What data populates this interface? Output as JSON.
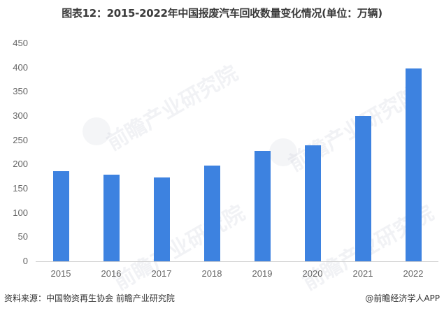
{
  "title": "图表12：2015-2022年中国报废汽车回收数量变化情况(单位：万辆)",
  "chart_data": {
    "type": "bar",
    "title": "图表12：2015-2022年中国报废汽车回收数量变化情况(单位：万辆)",
    "xlabel": "",
    "ylabel": "",
    "unit": "万辆",
    "categories": [
      "2015",
      "2016",
      "2017",
      "2018",
      "2019",
      "2020",
      "2021",
      "2022"
    ],
    "values": [
      186,
      179,
      173,
      198,
      228,
      240,
      300,
      398
    ],
    "ylim": [
      0,
      450
    ],
    "yticks": [
      0,
      50,
      100,
      150,
      200,
      250,
      300,
      350,
      400,
      450
    ],
    "grid": false,
    "legend": null,
    "bar_color": "#3d82e0"
  },
  "yticks": [
    "450",
    "400",
    "350",
    "300",
    "250",
    "200",
    "150",
    "100",
    "50",
    "0"
  ],
  "footer": {
    "source": "资料来源：中国物资再生协会 前瞻产业研究院",
    "credit": "@前瞻经济学人APP"
  },
  "watermark": "前瞻产业研究院"
}
